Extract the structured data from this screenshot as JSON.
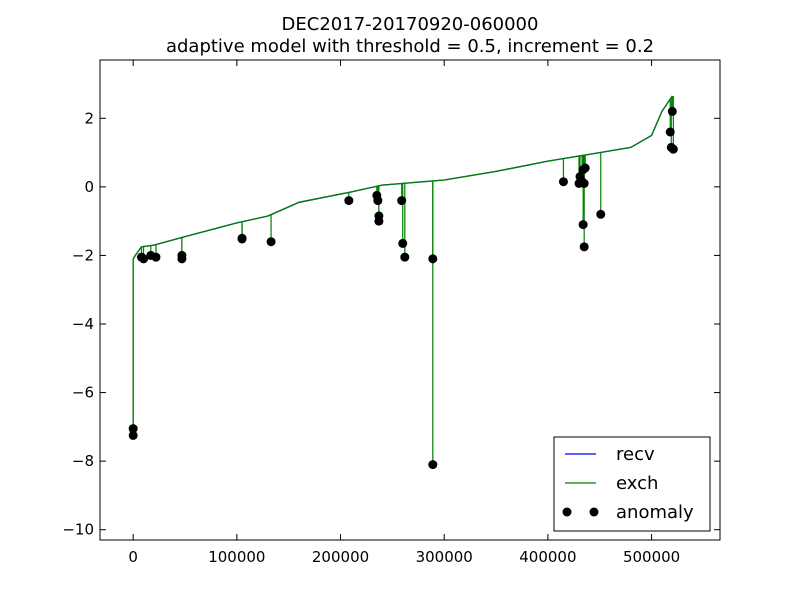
{
  "chart_data": {
    "type": "line",
    "title": "DEC2017-20170920-060000",
    "subtitle": "adaptive model with threshold = 0.5, increment = 0.2",
    "xlabel": "",
    "ylabel": "",
    "xlim": [
      -32000,
      566000
    ],
    "ylim": [
      -10.3,
      3.7
    ],
    "xticks": [
      0,
      100000,
      200000,
      300000,
      400000,
      500000
    ],
    "yticks": [
      -10,
      -8,
      -6,
      -4,
      -2,
      0,
      2
    ],
    "xtick_labels": [
      "0",
      "100000",
      "200000",
      "300000",
      "400000",
      "500000"
    ],
    "ytick_labels": [
      "−10",
      "−8",
      "−6",
      "−4",
      "−2",
      "0",
      "2"
    ],
    "grid": false,
    "legend_position": "lower-right",
    "legend": [
      {
        "label": "recv",
        "color": "#0000ff",
        "marker": "line"
      },
      {
        "label": "exch",
        "color": "#008000",
        "marker": "line"
      },
      {
        "label": "anomaly",
        "color": "#000000",
        "marker": "dot"
      }
    ],
    "series": [
      {
        "name": "recv",
        "color": "#0000ff",
        "x": [
          0,
          2000,
          8000,
          20000,
          50000,
          100000,
          130000,
          160000,
          210000,
          240000,
          300000,
          350000,
          400000,
          450000,
          480000,
          500000,
          510000,
          520000
        ],
        "y": [
          -2.1,
          -2.0,
          -1.75,
          -1.7,
          -1.45,
          -1.05,
          -0.85,
          -0.45,
          -0.15,
          0.05,
          0.2,
          0.45,
          0.75,
          1.0,
          1.15,
          1.5,
          2.2,
          2.65
        ]
      },
      {
        "name": "exch",
        "color": "#008000",
        "x": [
          0,
          2000,
          8000,
          20000,
          50000,
          100000,
          130000,
          160000,
          210000,
          240000,
          300000,
          350000,
          400000,
          450000,
          480000,
          500000,
          510000,
          520000
        ],
        "y": [
          -2.1,
          -2.0,
          -1.75,
          -1.7,
          -1.45,
          -1.05,
          -0.85,
          -0.45,
          -0.15,
          0.05,
          0.2,
          0.45,
          0.75,
          1.0,
          1.15,
          1.5,
          2.2,
          2.65
        ]
      }
    ],
    "anomalies": {
      "name": "anomaly",
      "color": "#000000",
      "points": [
        [
          0,
          -7.05
        ],
        [
          0,
          -7.25
        ],
        [
          8000,
          -2.05
        ],
        [
          10000,
          -2.1
        ],
        [
          17000,
          -2.0
        ],
        [
          22000,
          -2.05
        ],
        [
          47000,
          -2.0
        ],
        [
          47000,
          -2.1
        ],
        [
          105000,
          -1.5
        ],
        [
          105000,
          -1.52
        ],
        [
          133000,
          -1.6
        ],
        [
          208000,
          -0.4
        ],
        [
          235000,
          -0.25
        ],
        [
          236000,
          -0.4
        ],
        [
          237000,
          -0.85
        ],
        [
          237000,
          -1.0
        ],
        [
          259000,
          -0.4
        ],
        [
          260000,
          -1.65
        ],
        [
          262000,
          -2.05
        ],
        [
          289000,
          -2.1
        ],
        [
          289000,
          -8.1
        ],
        [
          415000,
          0.15
        ],
        [
          430000,
          0.1
        ],
        [
          431000,
          0.3
        ],
        [
          433000,
          0.15
        ],
        [
          434000,
          0.5
        ],
        [
          434000,
          -1.1
        ],
        [
          435000,
          -1.75
        ],
        [
          435000,
          0.1
        ],
        [
          436000,
          0.55
        ],
        [
          451000,
          -0.8
        ],
        [
          518000,
          1.6
        ],
        [
          519000,
          1.15
        ],
        [
          520000,
          2.2
        ],
        [
          521000,
          1.1
        ]
      ]
    }
  }
}
